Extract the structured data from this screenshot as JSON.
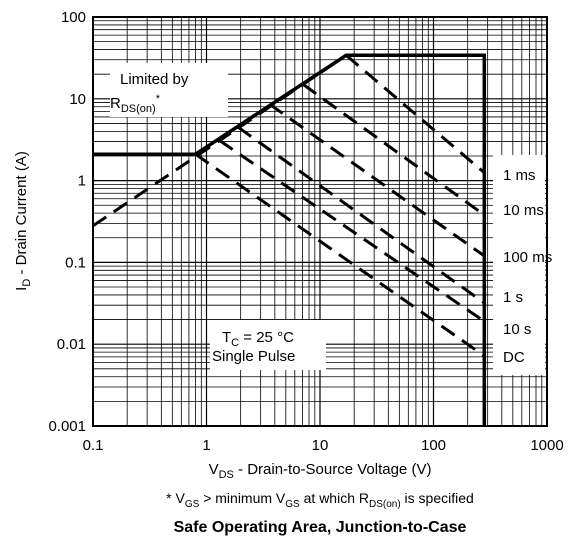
{
  "chart_data": {
    "type": "line",
    "title": "Safe Operating Area, Junction-to-Case",
    "xscale": "log",
    "yscale": "log",
    "xlim": [
      0.1,
      1000
    ],
    "ylim": [
      0.001,
      100
    ],
    "xlabel": {
      "prefix": "V",
      "sub": "DS",
      "rest": " - Drain-to-Source Voltage (V)"
    },
    "ylabel": {
      "prefix": "I",
      "sub": "D",
      "rest": " - Drain Current (A)"
    },
    "x_ticks": [
      "0.1",
      "1",
      "10",
      "100",
      "1000"
    ],
    "y_ticks": [
      "100",
      "10",
      "1",
      "0.1",
      "0.01",
      "0.001"
    ],
    "grid": true,
    "boundary": {
      "name": "SOA limit",
      "x": [
        0.1,
        0.8,
        0.8,
        17,
        280,
        280
      ],
      "y": [
        2.1,
        2.1,
        2.1,
        34,
        34,
        0.001
      ]
    },
    "rds_on_limit": {
      "x": [
        0.1,
        17
      ],
      "y": [
        0.28,
        34
      ]
    },
    "series": [
      {
        "name": "1 ms",
        "x": [
          17,
          280
        ],
        "y": [
          34,
          1.25
        ]
      },
      {
        "name": "10 ms",
        "x": [
          7.1,
          280
        ],
        "y": [
          15,
          0.38
        ]
      },
      {
        "name": "100 ms",
        "x": [
          3.6,
          280
        ],
        "y": [
          8.6,
          0.12
        ]
      },
      {
        "name": "1 s",
        "x": [
          1.9,
          280
        ],
        "y": [
          4.5,
          0.032
        ]
      },
      {
        "name": "10 s",
        "x": [
          1.3,
          280
        ],
        "y": [
          3.1,
          0.019
        ]
      },
      {
        "name": "DC",
        "x": [
          0.8,
          280
        ],
        "y": [
          2.1,
          0.0072
        ]
      }
    ],
    "annotations": {
      "limited_by": "Limited by",
      "rds_prefix": "R",
      "rds_sub": "DS(on)",
      "rds_star": "*",
      "tc_prefix": "T",
      "tc_sub": "C",
      "tc_rest": " = 25 °C",
      "single_pulse": "Single Pulse"
    },
    "footnote": {
      "p1": "* V",
      "s1": "GS",
      "p2": " > minimum V",
      "s2": "GS",
      "p3": " at which R",
      "s3": "DS(on)",
      "p4": " is specified"
    }
  }
}
